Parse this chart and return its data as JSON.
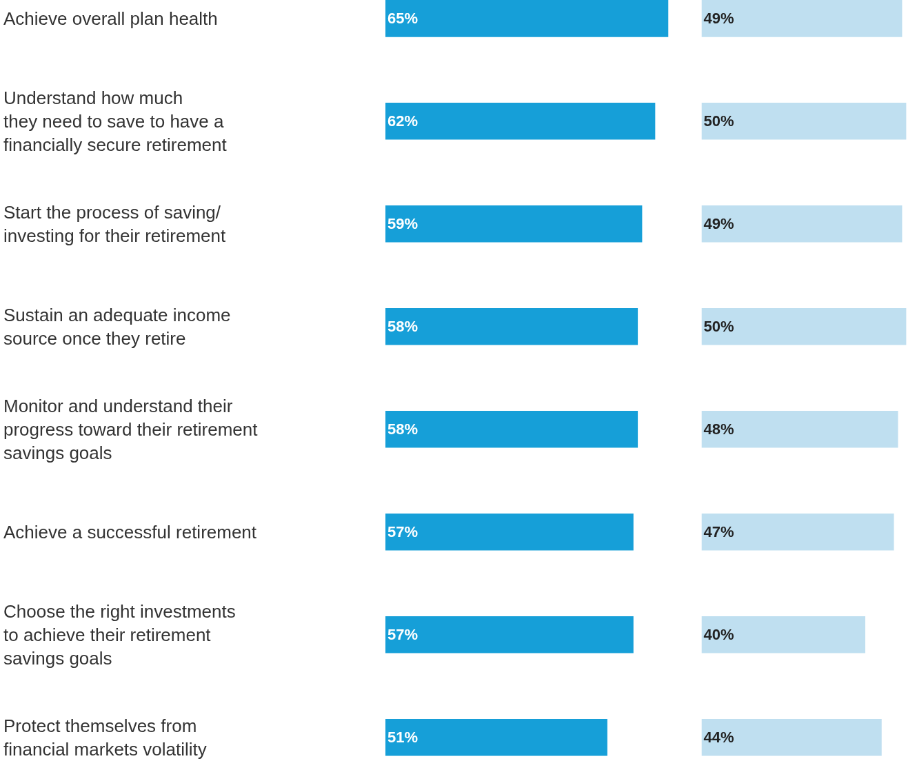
{
  "chart_data": [
    {
      "type": "bar",
      "orientation": "horizontal",
      "categories": [
        "Achieve overall plan health",
        "Understand how much\nthey need to save to have a\nfinancially secure retirement",
        "Start the process of saving/\ninvesting for their retirement",
        "Sustain an adequate income\nsource once they retire",
        "Monitor and understand their\nprogress toward their retirement\nsavings goals",
        "Achieve a successful retirement",
        "Choose the right investments\nto achieve their retirement\nsavings goals",
        "Protect themselves from\nfinancial markets volatility"
      ],
      "series": [
        {
          "color": "#169fd8",
          "values": [
            65,
            62,
            59,
            58,
            58,
            57,
            57,
            51
          ],
          "value_labels": [
            "65%",
            "62%",
            "59%",
            "58%",
            "58%",
            "57%",
            "57%",
            "51%"
          ]
        }
      ]
    },
    {
      "type": "bar",
      "orientation": "horizontal",
      "categories": [
        null,
        null,
        null,
        null,
        null,
        null,
        null,
        null
      ],
      "series": [
        {
          "color": "#bfdff0",
          "values": [
            49,
            50,
            49,
            50,
            48,
            47,
            40,
            44
          ],
          "value_labels": [
            "49%",
            "50%",
            "49%",
            "50%",
            "48%",
            "47%",
            "40%",
            "44%"
          ]
        }
      ]
    }
  ]
}
